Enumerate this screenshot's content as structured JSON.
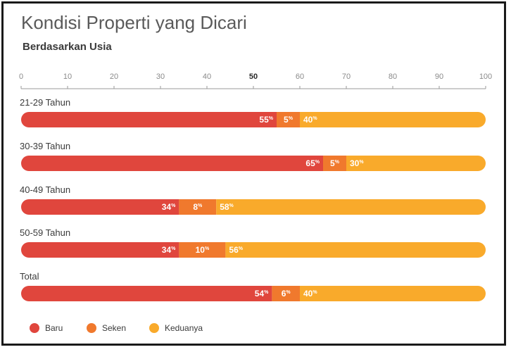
{
  "title": "Kondisi Properti yang Dicari",
  "subtitle": "Berdasarkan Usia",
  "colors": {
    "baru": "#e0463d",
    "seken": "#f0792d",
    "keduanya": "#f9aa2b",
    "axis": "#9a9a9a",
    "gridline": "#d8d8d8"
  },
  "chart_data": {
    "type": "bar",
    "orientation": "horizontal",
    "stacked": true,
    "categories": [
      "21-29 Tahun",
      "30-39 Tahun",
      "40-49 Tahun",
      "50-59 Tahun",
      "Total"
    ],
    "series": [
      {
        "name": "Baru",
        "values": [
          55,
          65,
          34,
          34,
          54
        ]
      },
      {
        "name": "Seken",
        "values": [
          5,
          5,
          8,
          10,
          6
        ]
      },
      {
        "name": "Keduanya",
        "values": [
          40,
          30,
          58,
          56,
          40
        ]
      }
    ],
    "value_unit": "%",
    "xlim": [
      0,
      100
    ],
    "xticks": [
      0,
      10,
      20,
      30,
      40,
      50,
      60,
      70,
      80,
      90,
      100
    ],
    "highlight_tick": 50,
    "legend_position": "bottom-left",
    "grid": false
  }
}
